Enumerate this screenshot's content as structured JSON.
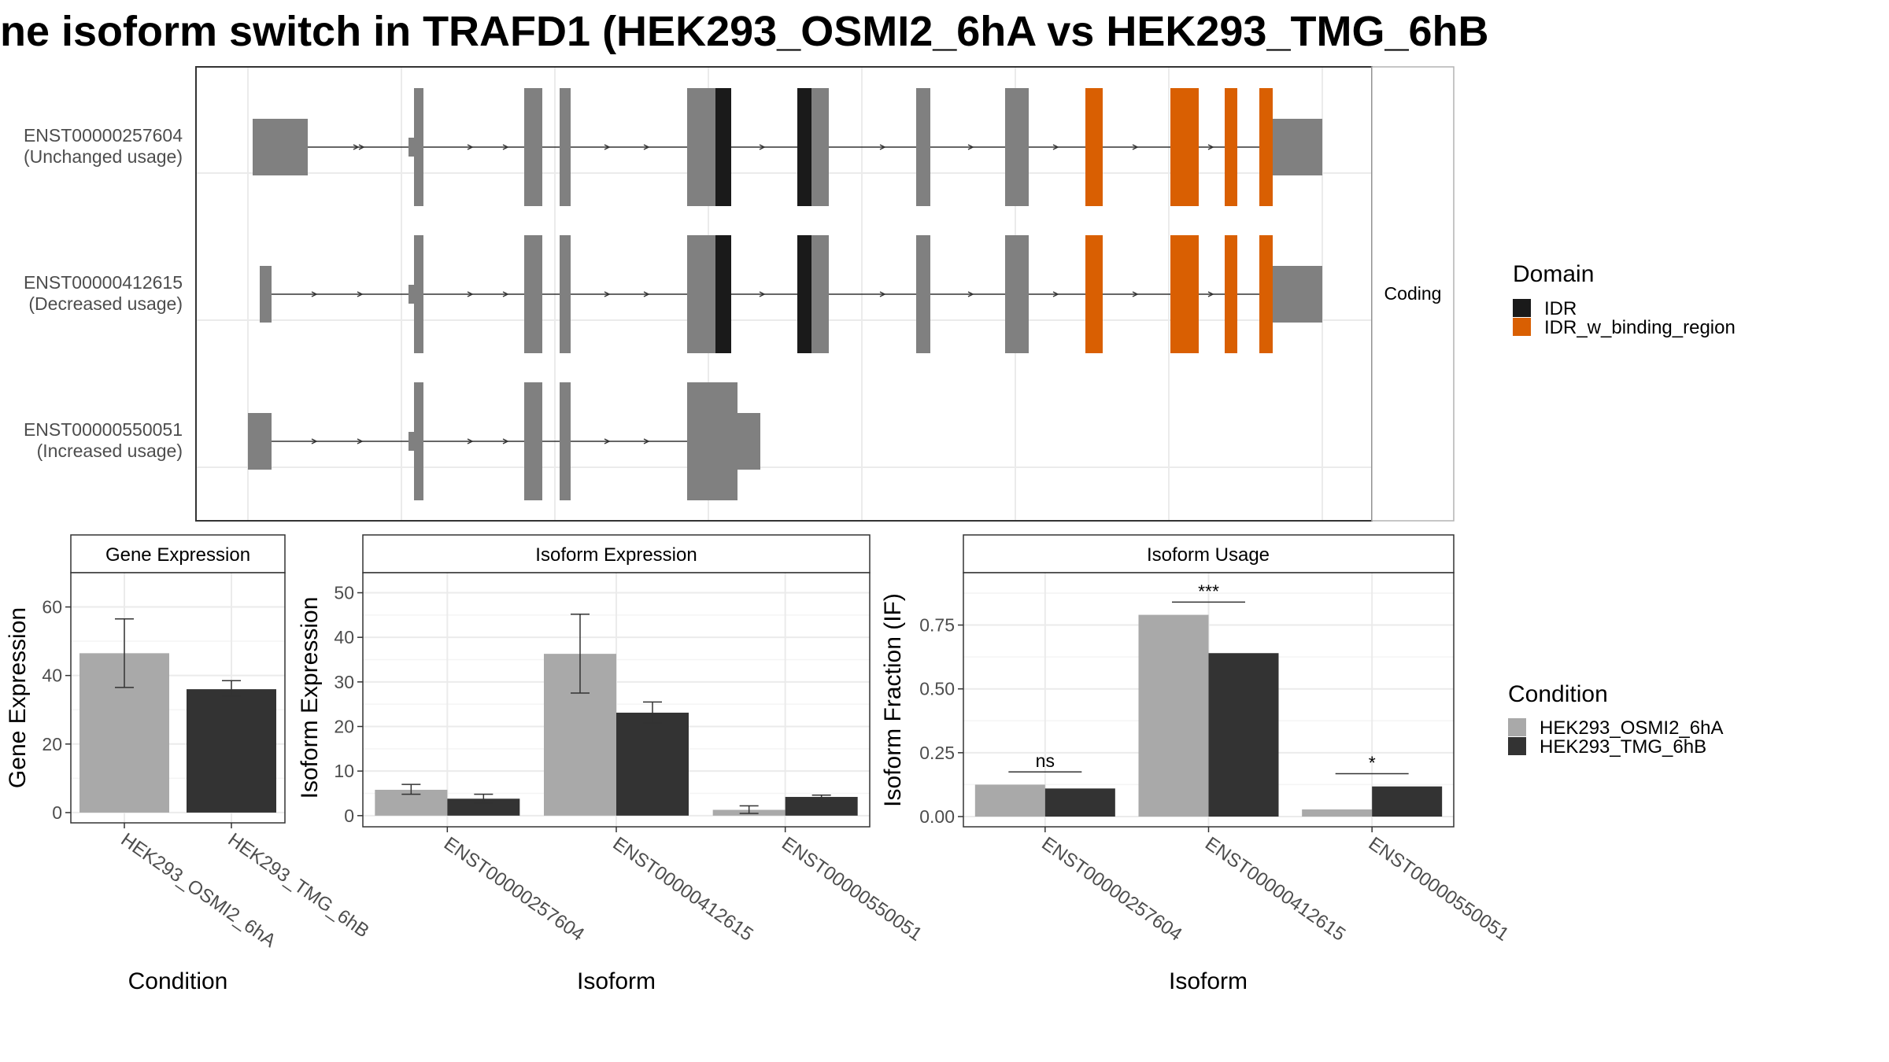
{
  "title": "ne isoform switch in TRAFD1 (HEK293_OSMI2_6hA vs HEK293_TMG_6hB",
  "colors": {
    "exon": "#808080",
    "idr": "#1a1a1a",
    "idr_binding": "#d95f02",
    "cond_a": "#a9a9a9",
    "cond_b": "#333333",
    "panel_border": "#333333",
    "strip_border": "#b3b3b3",
    "grid_major": "#ebebeb",
    "grid_minor": "#f4f4f4",
    "intron": "#333333"
  },
  "structure_panel": {
    "facet_label": "Coding",
    "transcripts": [
      {
        "id": "ENST00000257604",
        "status": "(Unchanged usage)"
      },
      {
        "id": "ENST00000412615",
        "status": "(Decreased usage)"
      },
      {
        "id": "ENST00000550051",
        "status": "(Increased usage)"
      }
    ],
    "legend": {
      "title": "Domain",
      "items": [
        {
          "label": "IDR",
          "color": "#1a1a1a"
        },
        {
          "label": "IDR_w_binding_region",
          "color": "#d95f02"
        }
      ]
    }
  },
  "condition_legend": {
    "title": "Condition",
    "items": [
      {
        "label": "HEK293_OSMI2_6hA",
        "color": "#a9a9a9"
      },
      {
        "label": "HEK293_TMG_6hB",
        "color": "#333333"
      }
    ]
  },
  "chart_data": [
    {
      "type": "bar",
      "title": "Gene Expression",
      "xlabel": "Condition",
      "ylabel": "Gene Expression",
      "categories": [
        "HEK293_OSMI2_6hA",
        "HEK293_TMG_6hB"
      ],
      "values": [
        46.5,
        36
      ],
      "error_low": [
        36.5,
        34
      ],
      "error_high": [
        56.5,
        38.5
      ],
      "ylim": [
        -3,
        70
      ],
      "yticks": [
        0,
        20,
        40,
        60
      ]
    },
    {
      "type": "bar",
      "title": "Isoform Expression",
      "xlabel": "Isoform",
      "ylabel": "Isoform Expression",
      "categories": [
        "ENST00000257604",
        "ENST00000412615",
        "ENST00000550051"
      ],
      "series": [
        {
          "name": "HEK293_OSMI2_6hA",
          "values": [
            5.8,
            36.3,
            1.3
          ],
          "error_low": [
            4.8,
            27.5,
            0.5
          ],
          "error_high": [
            7.0,
            45.2,
            2.2
          ]
        },
        {
          "name": "HEK293_TMG_6hB",
          "values": [
            3.8,
            23.1,
            4.2
          ],
          "error_low": [
            2.8,
            20.8,
            3.8
          ],
          "error_high": [
            4.8,
            25.5,
            4.6
          ]
        }
      ],
      "ylim": [
        -2.5,
        54.5
      ],
      "yticks": [
        0,
        10,
        20,
        30,
        40,
        50
      ]
    },
    {
      "type": "bar",
      "title": "Isoform Usage",
      "xlabel": "Isoform",
      "ylabel": "Isoform Fraction (IF)",
      "categories": [
        "ENST00000257604",
        "ENST00000412615",
        "ENST00000550051"
      ],
      "series": [
        {
          "name": "HEK293_OSMI2_6hA",
          "values": [
            0.125,
            0.79,
            0.028
          ]
        },
        {
          "name": "HEK293_TMG_6hB",
          "values": [
            0.11,
            0.64,
            0.118
          ]
        }
      ],
      "significance": [
        "ns",
        "***",
        "*"
      ],
      "ylim": [
        -0.04,
        0.955
      ],
      "yticks": [
        0.0,
        0.25,
        0.5,
        0.75
      ],
      "ytick_labels": [
        "0.00",
        "0.25",
        "0.50",
        "0.75"
      ]
    }
  ]
}
